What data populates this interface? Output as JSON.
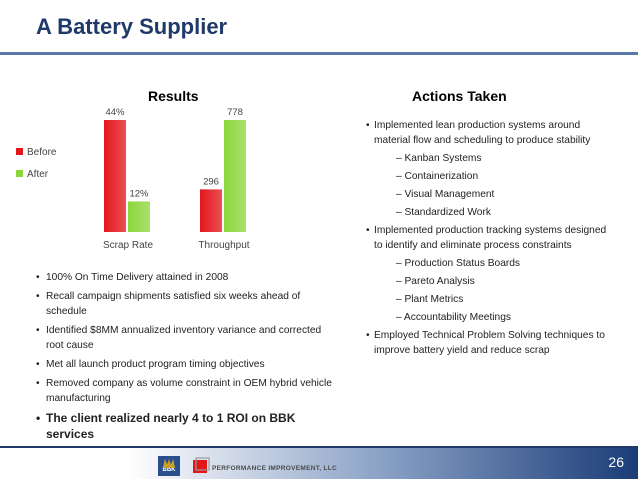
{
  "title": "A Battery Supplier",
  "results_header": "Results",
  "actions_header": "Actions Taken",
  "chart_data": {
    "type": "bar",
    "categories": [
      "Scrap Rate",
      "Throughput"
    ],
    "series": [
      {
        "name": "Before",
        "values": [
          44,
          296
        ],
        "labels": [
          "44%",
          "296"
        ],
        "color": "#e3161c"
      },
      {
        "name": "After",
        "values": [
          12,
          778
        ],
        "labels": [
          "12%",
          "778"
        ],
        "color": "#8cd63c"
      }
    ],
    "legend": "left"
  },
  "results_bullets": [
    "100% On Time Delivery attained in 2008",
    "Recall campaign shipments satisfied six weeks ahead of schedule",
    "Identified $8MM annualized inventory variance and corrected root cause",
    "Met all launch product program timing objectives",
    "Removed company as volume constraint in OEM hybrid vehicle manufacturing"
  ],
  "results_highlight": "The client realized nearly 4 to 1 ROI on BBK services",
  "actions": [
    {
      "text": "Implemented lean production systems around material flow and scheduling to produce stability",
      "subs": [
        "– Kanban Systems",
        "– Containerization",
        "– Visual Management",
        "– Standardized Work"
      ]
    },
    {
      "text": "Implemented production tracking systems designed to identify and eliminate process constraints",
      "subs": [
        "– Production Status Boards",
        "– Pareto Analysis",
        "– Plant Metrics",
        "– Accountability Meetings"
      ]
    },
    {
      "text": "Employed Technical Problem Solving techniques to improve battery yield and reduce scrap",
      "subs": []
    }
  ],
  "footer": {
    "bbk_logo_text": "BBK",
    "pi_logo_text": "PERFORMANCE IMPROVEMENT, LLC",
    "page_number": "26"
  }
}
